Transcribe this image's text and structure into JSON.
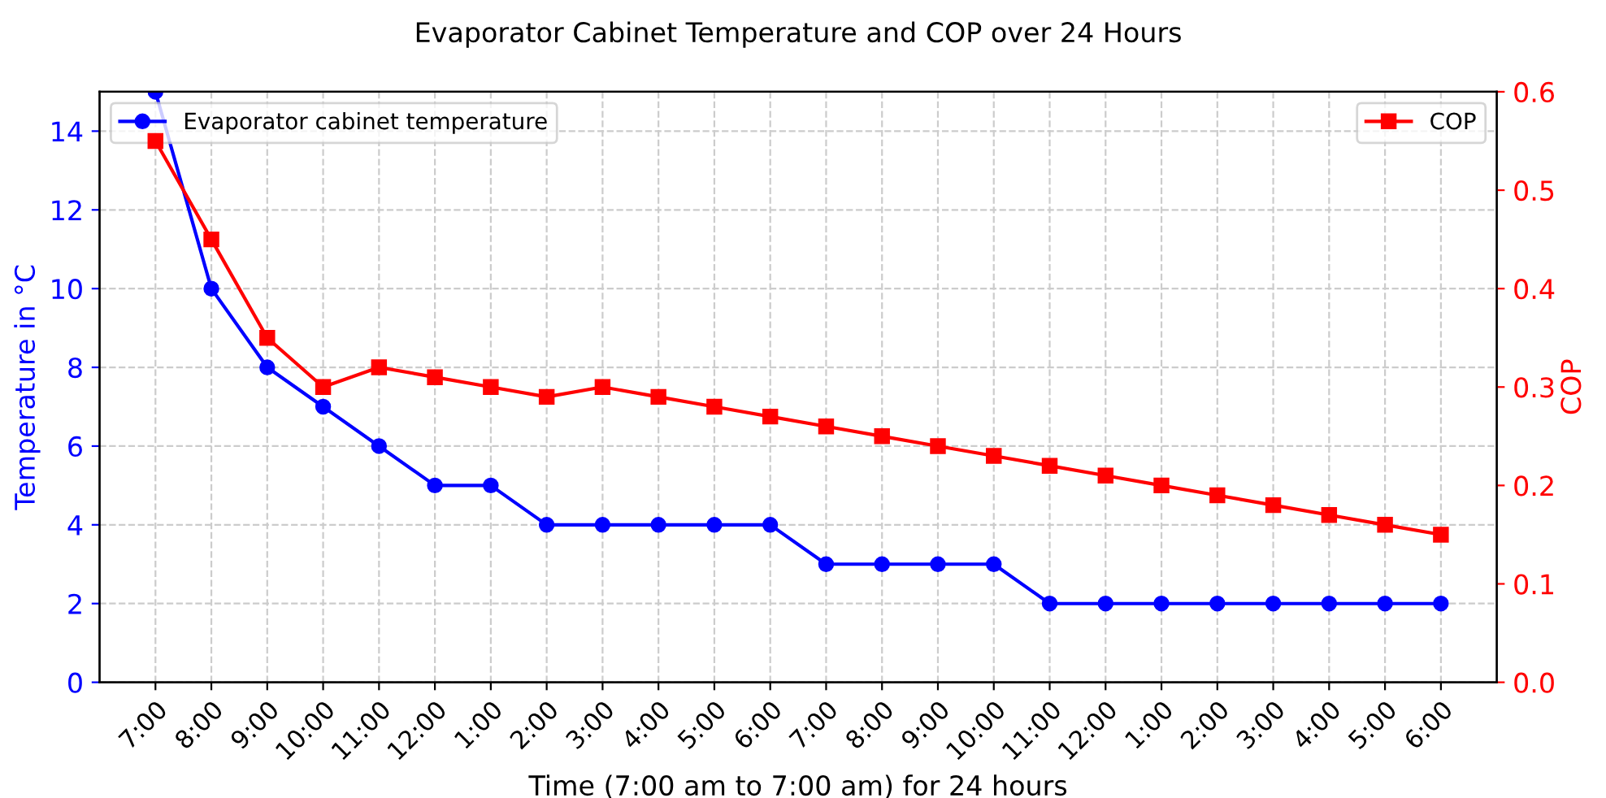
{
  "chart_data": {
    "type": "line",
    "title": "Evaporator Cabinet Temperature and COP over 24 Hours",
    "xlabel": "Time (7:00 am to 7:00 am) for 24 hours",
    "ylabel": "Temperature in °C",
    "y2label": "COP",
    "categories": [
      "7:00",
      "8:00",
      "9:00",
      "10:00",
      "11:00",
      "12:00",
      "1:00",
      "2:00",
      "3:00",
      "4:00",
      "5:00",
      "6:00",
      "7:00",
      "8:00",
      "9:00",
      "10:00",
      "11:00",
      "12:00",
      "1:00",
      "2:00",
      "3:00",
      "4:00",
      "5:00",
      "6:00"
    ],
    "series": [
      {
        "name": "Evaporator cabinet temperature",
        "color": "#0000ff",
        "marker": "circle",
        "values": [
          15,
          10,
          8,
          7,
          6,
          5,
          5,
          4,
          4,
          4,
          4,
          4,
          3,
          3,
          3,
          3,
          2,
          2,
          2,
          2,
          2,
          2,
          2,
          2
        ]
      },
      {
        "name": "COP",
        "color": "#ff0000",
        "marker": "square",
        "axis": "y2",
        "values": [
          0.55,
          0.45,
          0.35,
          0.3,
          0.32,
          0.31,
          0.3,
          0.29,
          0.3,
          0.29,
          0.28,
          0.27,
          0.26,
          0.25,
          0.24,
          0.23,
          0.22,
          0.21,
          0.2,
          0.19,
          0.18,
          0.17,
          0.16,
          0.15
        ]
      }
    ],
    "ylim": [
      0,
      15
    ],
    "yticks": [
      0,
      2,
      4,
      6,
      8,
      10,
      12,
      14
    ],
    "y2lim": [
      0,
      0.6
    ],
    "y2ticks": [
      {
        "value": 0,
        "label": "0.0"
      },
      {
        "value": 0.1,
        "label": "0.1"
      },
      {
        "value": 0.2,
        "label": "0.2"
      },
      {
        "value": 0.3,
        "label": "0.3"
      },
      {
        "value": 0.4,
        "label": "0.4"
      },
      {
        "value": 0.5,
        "label": "0.5"
      },
      {
        "value": 0.6,
        "label": "0.6"
      }
    ],
    "grid": true,
    "legend": "top",
    "line_style": "solid"
  }
}
